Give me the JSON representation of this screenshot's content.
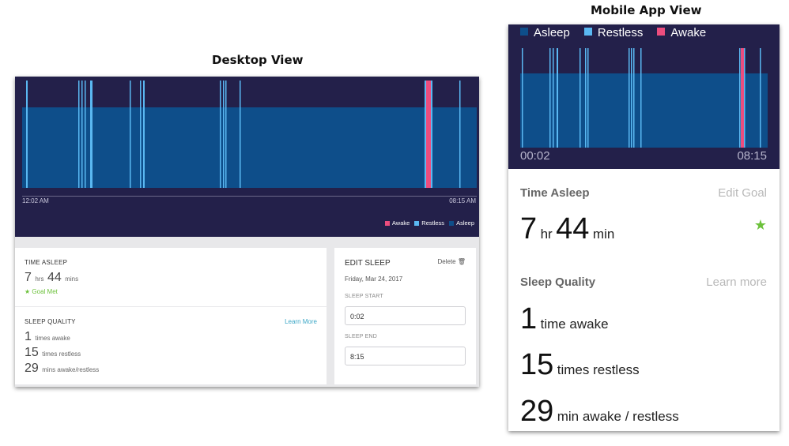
{
  "headings": {
    "desktop": "Desktop View",
    "mobile": "Mobile App View"
  },
  "colors": {
    "chart_bg": "#23204a",
    "asleep": "#0e4e8a",
    "restless": "#5ab8f2",
    "awake": "#ec4d7e",
    "goal": "#6cc13b",
    "link": "#3ba6c6"
  },
  "desktop": {
    "chart": {
      "start_time": "12:02 AM",
      "end_time": "08:15 AM"
    },
    "legend": {
      "awake": "Awake",
      "restless": "Restless",
      "asleep": "Asleep"
    },
    "time_asleep": {
      "label": "TIME ASLEEP",
      "hours": "7",
      "hours_unit": "hrs",
      "minutes": "44",
      "minutes_unit": "mins",
      "goal_text": "Goal Met"
    },
    "sleep_quality": {
      "label": "SLEEP QUALITY",
      "learn_more": "Learn More",
      "awake_count": "1",
      "awake_unit": "times awake",
      "restless_count": "15",
      "restless_unit": "times restless",
      "minutes_count": "29",
      "minutes_unit": "mins awake/restless"
    },
    "edit_sleep": {
      "title": "EDIT SLEEP",
      "delete": "Delete",
      "date": "Friday, Mar 24, 2017",
      "start_label": "SLEEP START",
      "start_value": "0:02",
      "end_label": "SLEEP END",
      "end_value": "8:15"
    }
  },
  "mobile": {
    "legend": {
      "asleep": "Asleep",
      "restless": "Restless",
      "awake": "Awake"
    },
    "chart": {
      "start_time": "00:02",
      "end_time": "08:15"
    },
    "time_asleep": {
      "label": "Time Asleep",
      "edit_goal": "Edit Goal",
      "hours": "7",
      "hours_unit": "hr",
      "minutes": "44",
      "minutes_unit": "min"
    },
    "sleep_quality": {
      "label": "Sleep Quality",
      "learn_more": "Learn more",
      "awake_count": "1",
      "awake_unit": "time awake",
      "restless_count": "15",
      "restless_unit": "times restless",
      "minutes_count": "29",
      "minutes_unit": "min awake / restless"
    }
  }
}
